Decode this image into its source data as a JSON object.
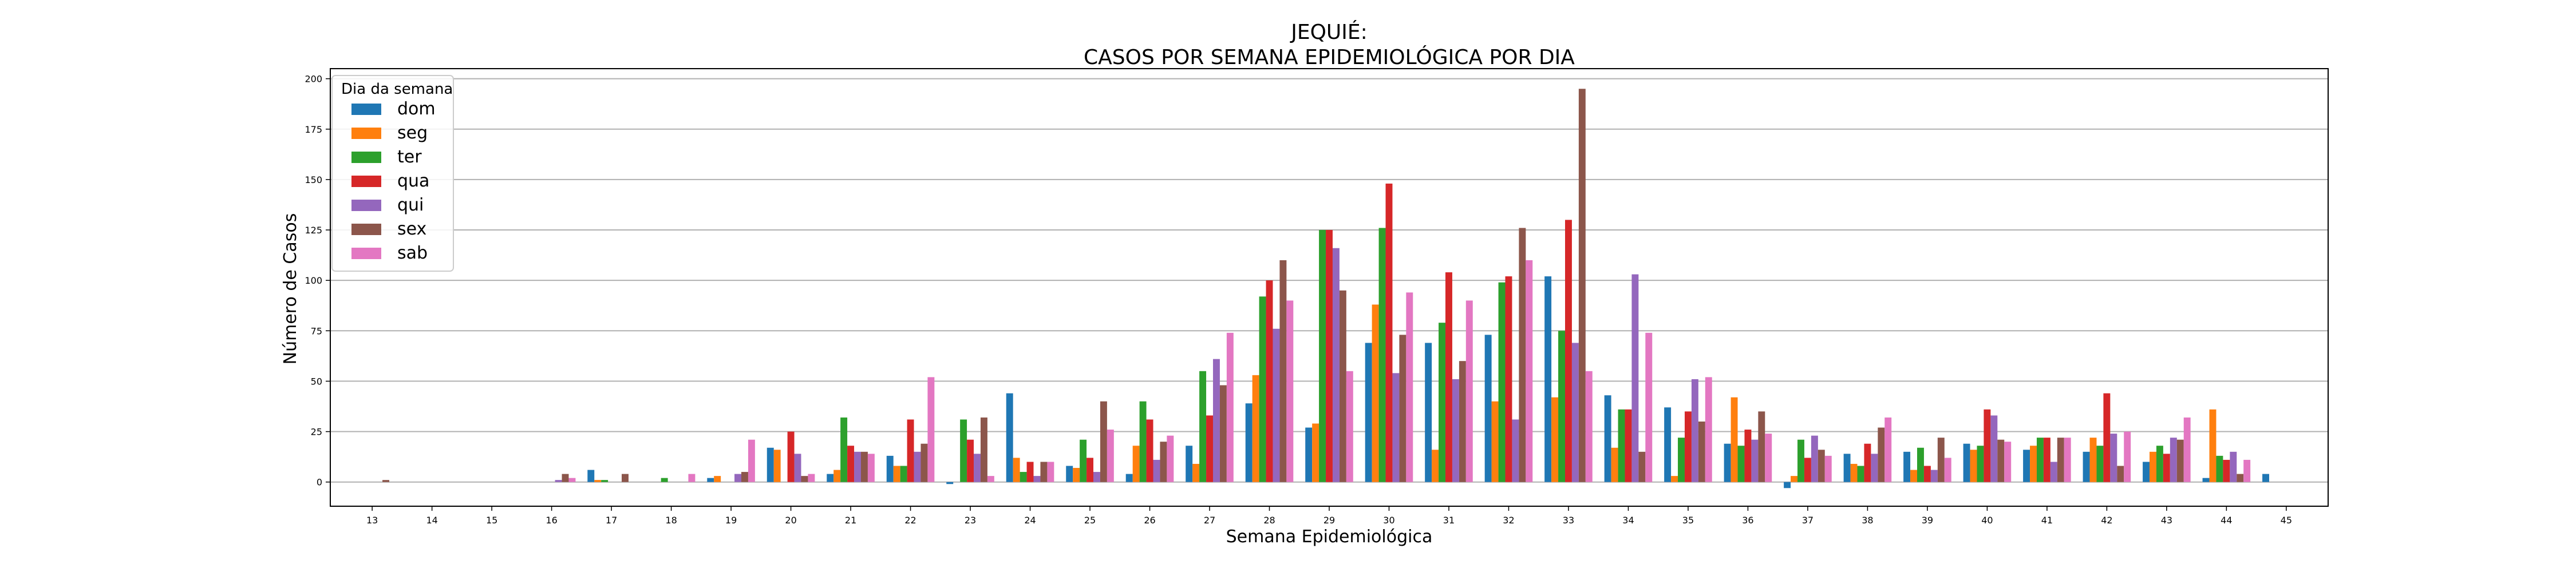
{
  "chart_data": {
    "type": "bar",
    "title_line1": "JEQUIÉ:",
    "title_line2": "CASOS POR SEMANA EPIDEMIOLÓGICA POR DIA",
    "xlabel": "Semana Epidemiológica",
    "ylabel": "Número de Casos",
    "ylim": [
      -12,
      205
    ],
    "yticks": [
      0,
      25,
      50,
      75,
      100,
      125,
      150,
      175,
      200
    ],
    "grid": "horizontal",
    "legend_title": "Dia da semana",
    "legend_position": "upper-left",
    "categories": [
      "13",
      "14",
      "15",
      "16",
      "17",
      "18",
      "19",
      "20",
      "21",
      "22",
      "23",
      "24",
      "25",
      "26",
      "27",
      "28",
      "29",
      "30",
      "31",
      "32",
      "33",
      "34",
      "35",
      "36",
      "37",
      "38",
      "39",
      "40",
      "41",
      "42",
      "43",
      "44",
      "45"
    ],
    "series": [
      {
        "name": "dom",
        "color": "#1f77b4",
        "values": [
          0,
          0,
          0,
          0,
          6,
          0,
          2,
          17,
          4,
          13,
          -1,
          44,
          8,
          4,
          18,
          39,
          27,
          69,
          69,
          73,
          102,
          43,
          37,
          19,
          -3,
          14,
          15,
          19,
          16,
          15,
          10,
          2,
          4
        ]
      },
      {
        "name": "seg",
        "color": "#ff7f0e",
        "values": [
          0,
          0,
          0,
          0,
          1,
          0,
          3,
          16,
          6,
          8,
          0,
          12,
          7,
          18,
          9,
          53,
          29,
          88,
          16,
          40,
          42,
          17,
          3,
          42,
          3,
          9,
          6,
          16,
          18,
          22,
          15,
          36,
          0
        ]
      },
      {
        "name": "ter",
        "color": "#2ca02c",
        "values": [
          0,
          0,
          0,
          0,
          1,
          2,
          0,
          0,
          32,
          8,
          31,
          5,
          21,
          40,
          55,
          92,
          125,
          126,
          79,
          99,
          75,
          36,
          22,
          18,
          21,
          8,
          17,
          18,
          22,
          18,
          18,
          13,
          0
        ]
      },
      {
        "name": "qua",
        "color": "#d62728",
        "values": [
          0,
          0,
          0,
          0,
          0,
          0,
          0,
          25,
          18,
          31,
          21,
          10,
          12,
          31,
          33,
          100,
          125,
          148,
          104,
          102,
          130,
          36,
          35,
          26,
          12,
          19,
          8,
          36,
          22,
          44,
          14,
          11,
          0
        ]
      },
      {
        "name": "qui",
        "color": "#9467bd",
        "values": [
          0,
          0,
          0,
          1,
          0,
          0,
          4,
          14,
          15,
          15,
          14,
          3,
          5,
          11,
          61,
          76,
          116,
          54,
          51,
          31,
          69,
          103,
          51,
          21,
          23,
          14,
          6,
          33,
          10,
          24,
          22,
          15,
          0
        ]
      },
      {
        "name": "sex",
        "color": "#8c564b",
        "values": [
          1,
          0,
          0,
          4,
          4,
          0,
          5,
          3,
          15,
          19,
          32,
          10,
          40,
          20,
          48,
          110,
          95,
          73,
          60,
          126,
          195,
          15,
          30,
          35,
          16,
          27,
          22,
          21,
          22,
          8,
          21,
          4,
          0
        ]
      },
      {
        "name": "sab",
        "color": "#e377c2",
        "values": [
          0,
          0,
          0,
          2,
          0,
          4,
          21,
          4,
          14,
          52,
          3,
          10,
          26,
          23,
          74,
          90,
          55,
          94,
          90,
          110,
          55,
          74,
          52,
          24,
          13,
          32,
          12,
          20,
          22,
          25,
          32,
          11,
          0
        ]
      }
    ]
  }
}
